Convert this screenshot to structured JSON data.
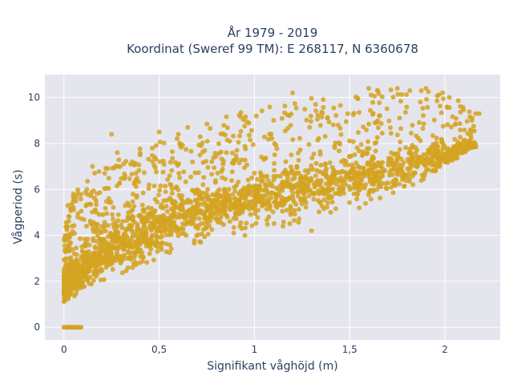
{
  "chart_data": {
    "type": "scatter",
    "title_line1": "År 1979 - 2019",
    "title_line2": "Koordinat (Sweref 99 TM): E 268117, N 6360678",
    "xlabel": "Signifikant våghöjd (m)",
    "ylabel": "Vågperiod (s)",
    "xlim": [
      -0.1,
      2.29
    ],
    "ylim": [
      -0.55,
      11.0
    ],
    "x_ticks": [
      0,
      0.5,
      1,
      1.5,
      2
    ],
    "x_tick_labels": [
      "0",
      "0,5",
      "1",
      "1,5",
      "2"
    ],
    "y_ticks": [
      0,
      2,
      4,
      6,
      8,
      10
    ],
    "y_tick_labels": [
      "0",
      "2",
      "4",
      "6",
      "8",
      "10"
    ],
    "grid": true,
    "marker_color": "#d4a321",
    "background_color": "#e5e5ee",
    "grid_color": "#ffffff",
    "point_count_approx": 350000,
    "data_envelope": {
      "zero_period_band": {
        "x": [
          0.0,
          0.09
        ],
        "y": 0
      },
      "lower_bound": [
        [
          0.0,
          1.1
        ],
        [
          0.1,
          1.4
        ],
        [
          0.2,
          2.0
        ],
        [
          0.4,
          2.7
        ],
        [
          0.6,
          3.3
        ],
        [
          0.8,
          3.9
        ],
        [
          1.0,
          4.3
        ],
        [
          1.2,
          4.5
        ],
        [
          1.5,
          5.1
        ],
        [
          1.8,
          6.0
        ],
        [
          2.0,
          7.0
        ],
        [
          2.15,
          7.8
        ]
      ],
      "upper_bound": [
        [
          0.0,
          4.2
        ],
        [
          0.05,
          5.8
        ],
        [
          0.1,
          6.3
        ],
        [
          0.2,
          7.0
        ],
        [
          0.4,
          7.8
        ],
        [
          0.6,
          8.5
        ],
        [
          0.8,
          9.2
        ],
        [
          1.0,
          9.6
        ],
        [
          1.2,
          9.9
        ],
        [
          1.5,
          10.1
        ],
        [
          1.7,
          10.4
        ],
        [
          2.0,
          10.4
        ],
        [
          2.15,
          9.4
        ]
      ],
      "dense_core": [
        [
          0.0,
          1.8
        ],
        [
          0.1,
          2.6
        ],
        [
          0.2,
          3.2
        ],
        [
          0.4,
          4.1
        ],
        [
          0.6,
          4.8
        ],
        [
          0.8,
          5.3
        ],
        [
          1.0,
          5.7
        ],
        [
          1.2,
          6.0
        ],
        [
          1.5,
          6.4
        ],
        [
          1.8,
          7.0
        ],
        [
          2.0,
          7.5
        ],
        [
          2.15,
          8.0
        ]
      ]
    },
    "sample_points": [
      [
        0.25,
        8.4
      ],
      [
        0.6,
        8.4
      ],
      [
        0.65,
        8.7
      ],
      [
        1.2,
        10.2
      ],
      [
        1.6,
        10.4
      ],
      [
        1.75,
        10.4
      ],
      [
        1.9,
        10.4
      ],
      [
        2.18,
        9.3
      ],
      [
        0.95,
        4.0
      ],
      [
        1.3,
        4.2
      ],
      [
        1.15,
        4.4
      ],
      [
        0.28,
        7.6
      ],
      [
        0.05,
        5.8
      ],
      [
        0.02,
        5.3
      ],
      [
        0.15,
        7.0
      ],
      [
        0.5,
        8.5
      ],
      [
        0.3,
        2.9
      ],
      [
        0.45,
        3.2
      ],
      [
        1.95,
        6.8
      ],
      [
        2.05,
        7.5
      ],
      [
        1.55,
        5.2
      ],
      [
        1.4,
        5.0
      ],
      [
        0.35,
        7.1
      ],
      [
        0.72,
        7.9
      ]
    ]
  }
}
